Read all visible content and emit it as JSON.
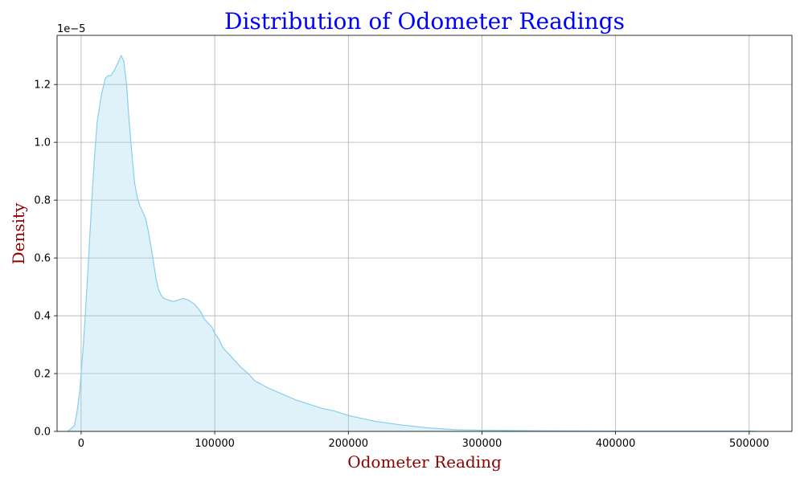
{
  "chart_data": {
    "type": "area",
    "title": "Distribution of Odometer Readings",
    "xlabel": "Odometer Reading",
    "ylabel": "Density",
    "y_offset_label": "1e−5",
    "y_scale": 1e-05,
    "xlim": [
      -18000,
      532000
    ],
    "ylim": [
      0,
      1.37
    ],
    "x_ticks": [
      0,
      100000,
      200000,
      300000,
      400000,
      500000
    ],
    "x_tick_labels": [
      "0",
      "100000",
      "200000",
      "300000",
      "400000",
      "500000"
    ],
    "y_ticks": [
      0.0,
      0.2,
      0.4,
      0.6,
      0.8,
      1.0,
      1.2
    ],
    "y_tick_labels": [
      "0.0",
      "0.2",
      "0.4",
      "0.6",
      "0.8",
      "1.0",
      "1.2"
    ],
    "grid": true,
    "colors": {
      "line": "#87ceeb",
      "fill": "#87ceeb",
      "fill_opacity": 0.27,
      "grid": "#b0b0b0"
    },
    "series": [
      {
        "x": [
          -10000,
          -5000,
          -3000,
          -1000,
          0,
          2000,
          5000,
          8000,
          10000,
          12000,
          15000,
          18000,
          20000,
          22000,
          25000,
          28000,
          30000,
          32000,
          34000,
          36000,
          38000,
          40000,
          42000,
          44000,
          46000,
          48000,
          50000,
          53000,
          56000,
          58000,
          60000,
          62000,
          65000,
          68000,
          70000,
          73000,
          76000,
          80000,
          85000,
          90000,
          92000,
          95000,
          98000,
          100000,
          103000,
          106000,
          110000,
          115000,
          120000,
          125000,
          130000,
          140000,
          150000,
          160000,
          170000,
          180000,
          190000,
          200000,
          210000,
          220000,
          240000,
          260000,
          280000,
          300000,
          350000,
          400000,
          450000,
          500000,
          505000
        ],
        "y": [
          0.0,
          0.02,
          0.07,
          0.14,
          0.2,
          0.32,
          0.55,
          0.8,
          0.95,
          1.07,
          1.16,
          1.22,
          1.23,
          1.23,
          1.25,
          1.28,
          1.3,
          1.28,
          1.2,
          1.07,
          0.96,
          0.86,
          0.81,
          0.78,
          0.76,
          0.74,
          0.7,
          0.62,
          0.53,
          0.49,
          0.47,
          0.46,
          0.455,
          0.45,
          0.45,
          0.455,
          0.46,
          0.455,
          0.44,
          0.41,
          0.39,
          0.375,
          0.36,
          0.34,
          0.32,
          0.29,
          0.27,
          0.245,
          0.22,
          0.2,
          0.175,
          0.15,
          0.13,
          0.11,
          0.095,
          0.08,
          0.07,
          0.055,
          0.045,
          0.035,
          0.022,
          0.012,
          0.006,
          0.004,
          0.002,
          0.001,
          0.001,
          0.001,
          0.0
        ]
      }
    ]
  }
}
